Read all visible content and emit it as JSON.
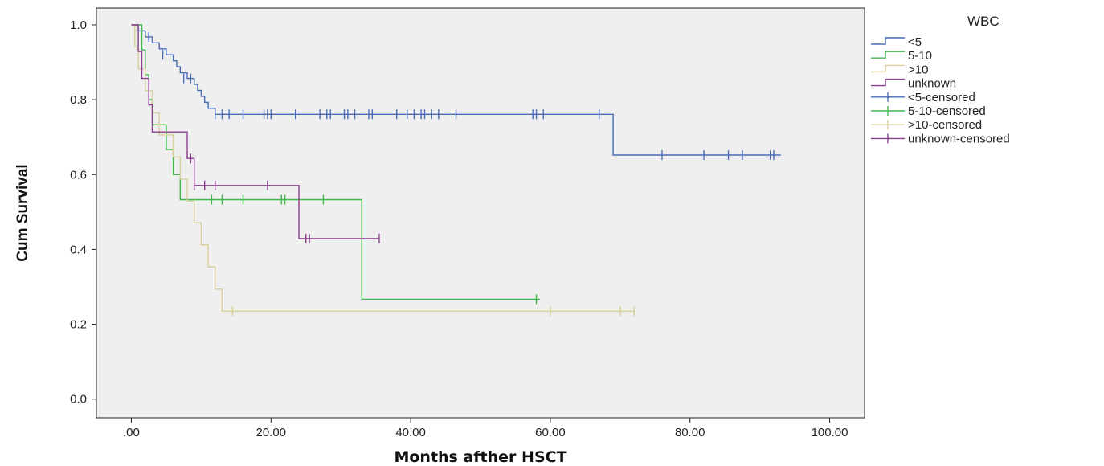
{
  "chart_data": {
    "type": "line",
    "subtype": "kaplan-meier",
    "title": "",
    "xlabel": "Months afther HSCT",
    "ylabel": "Cum Survival",
    "xlim": [
      -5,
      105
    ],
    "ylim": [
      -0.05,
      1.045
    ],
    "x_ticks": [
      0,
      20,
      40,
      60,
      80,
      100
    ],
    "x_tick_labels": [
      ".00",
      "20.00",
      "40.00",
      "60.00",
      "80.00",
      "100.00"
    ],
    "y_ticks": [
      0,
      0.2,
      0.4,
      0.6,
      0.8,
      1.0
    ],
    "y_tick_labels": [
      "0.0",
      "0.2",
      "0.4",
      "0.6",
      "0.8",
      "1.0"
    ],
    "grid": false,
    "legend_title": "WBC",
    "legend_position": "right",
    "colors": {
      "lt5": "#4a6bb5",
      "5to10": "#3fb84a",
      "gt10": "#d9ce9e",
      "unknown": "#8a3d8f",
      "plot_bg": "#efefef"
    },
    "series": [
      {
        "name": "<5",
        "censored_name": "<5-censored",
        "color_key": "lt5",
        "steps": [
          [
            0,
            1.0
          ],
          [
            1,
            0.984
          ],
          [
            2,
            0.968
          ],
          [
            3,
            0.952
          ],
          [
            4,
            0.936
          ],
          [
            5,
            0.92
          ],
          [
            6,
            0.904
          ],
          [
            6.5,
            0.888
          ],
          [
            7,
            0.872
          ],
          [
            8,
            0.857
          ],
          [
            9,
            0.841
          ],
          [
            9.5,
            0.825
          ],
          [
            10,
            0.809
          ],
          [
            10.5,
            0.793
          ],
          [
            11,
            0.777
          ],
          [
            12,
            0.761
          ],
          [
            69,
            0.761
          ],
          [
            69,
            0.652
          ],
          [
            93,
            0.652
          ]
        ],
        "censored": [
          [
            2.5,
            0.968
          ],
          [
            4.5,
            0.92
          ],
          [
            7.5,
            0.857
          ],
          [
            8.5,
            0.857
          ],
          [
            12,
            0.761
          ],
          [
            13,
            0.761
          ],
          [
            14,
            0.761
          ],
          [
            16,
            0.761
          ],
          [
            19,
            0.761
          ],
          [
            19.5,
            0.761
          ],
          [
            20,
            0.761
          ],
          [
            23.5,
            0.761
          ],
          [
            27,
            0.761
          ],
          [
            28,
            0.761
          ],
          [
            28.5,
            0.761
          ],
          [
            30.5,
            0.761
          ],
          [
            31,
            0.761
          ],
          [
            32,
            0.761
          ],
          [
            34,
            0.761
          ],
          [
            34.5,
            0.761
          ],
          [
            38,
            0.761
          ],
          [
            39.5,
            0.761
          ],
          [
            40.5,
            0.761
          ],
          [
            41.5,
            0.761
          ],
          [
            42,
            0.761
          ],
          [
            43,
            0.761
          ],
          [
            44,
            0.761
          ],
          [
            46.5,
            0.761
          ],
          [
            57.5,
            0.761
          ],
          [
            58,
            0.761
          ],
          [
            59,
            0.761
          ],
          [
            67,
            0.761
          ],
          [
            76,
            0.652
          ],
          [
            82,
            0.652
          ],
          [
            85.5,
            0.652
          ],
          [
            87.5,
            0.652
          ],
          [
            91.5,
            0.652
          ],
          [
            92,
            0.652
          ]
        ]
      },
      {
        "name": "5-10",
        "censored_name": "5-10-censored",
        "color_key": "5to10",
        "steps": [
          [
            0,
            1.0
          ],
          [
            1.5,
            0.933
          ],
          [
            2,
            0.867
          ],
          [
            2.5,
            0.8
          ],
          [
            3,
            0.733
          ],
          [
            4,
            0.733
          ],
          [
            5,
            0.667
          ],
          [
            6,
            0.6
          ],
          [
            7,
            0.533
          ],
          [
            33,
            0.533
          ],
          [
            33,
            0.267
          ],
          [
            58.5,
            0.267
          ]
        ],
        "censored": [
          [
            11.5,
            0.533
          ],
          [
            13,
            0.533
          ],
          [
            16,
            0.533
          ],
          [
            21.5,
            0.533
          ],
          [
            22,
            0.533
          ],
          [
            27.5,
            0.533
          ],
          [
            58,
            0.267
          ]
        ]
      },
      {
        "name": ">10",
        "censored_name": ">10-censored",
        "color_key": "gt10",
        "steps": [
          [
            0,
            1.0
          ],
          [
            0.5,
            0.941
          ],
          [
            1,
            0.882
          ],
          [
            2,
            0.824
          ],
          [
            3,
            0.765
          ],
          [
            4,
            0.706
          ],
          [
            6,
            0.647
          ],
          [
            7,
            0.588
          ],
          [
            8,
            0.529
          ],
          [
            9,
            0.471
          ],
          [
            10,
            0.412
          ],
          [
            11,
            0.353
          ],
          [
            12,
            0.294
          ],
          [
            13,
            0.235
          ],
          [
            72,
            0.235
          ]
        ],
        "censored": [
          [
            14.5,
            0.235
          ],
          [
            60,
            0.235
          ],
          [
            70,
            0.235
          ],
          [
            72,
            0.235
          ]
        ]
      },
      {
        "name": "unknown",
        "censored_name": "unknown-censored",
        "color_key": "unknown",
        "steps": [
          [
            0,
            1.0
          ],
          [
            1,
            0.929
          ],
          [
            1.5,
            0.857
          ],
          [
            2.5,
            0.786
          ],
          [
            3,
            0.714
          ],
          [
            7.5,
            0.714
          ],
          [
            8,
            0.643
          ],
          [
            9,
            0.571
          ],
          [
            24,
            0.571
          ],
          [
            24,
            0.429
          ],
          [
            35.5,
            0.429
          ]
        ],
        "censored": [
          [
            8.5,
            0.643
          ],
          [
            9,
            0.571
          ],
          [
            10.5,
            0.571
          ],
          [
            12,
            0.571
          ],
          [
            19.5,
            0.571
          ],
          [
            25,
            0.429
          ],
          [
            25.5,
            0.429
          ],
          [
            35.5,
            0.429
          ]
        ]
      }
    ]
  }
}
